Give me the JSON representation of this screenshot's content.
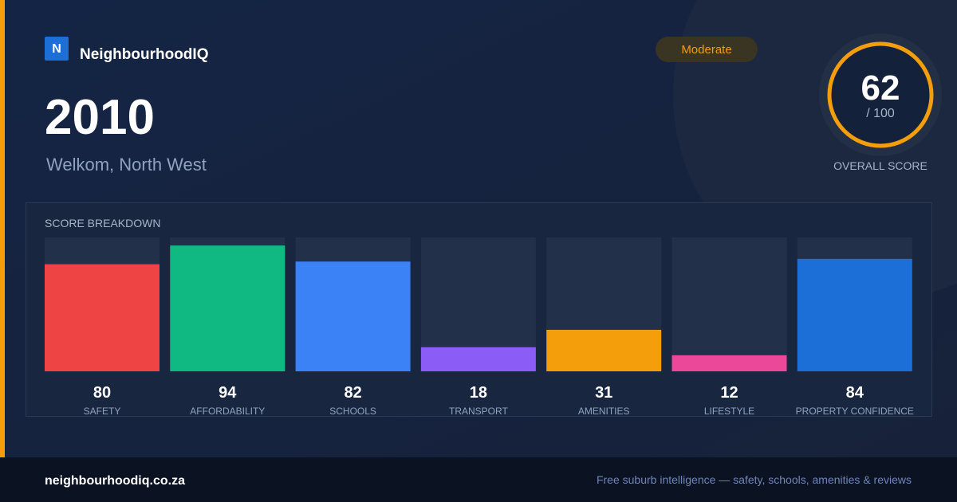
{
  "header": {
    "brand_initial": "N",
    "brand": "NeighbourhoodIQ",
    "title": "2010",
    "subtitle": "Welkom, North West",
    "badge": "Moderate"
  },
  "score": {
    "value": 62,
    "max_label": "/ 100",
    "label": "OVERALL SCORE"
  },
  "chart_data": {
    "type": "bar",
    "title": "SCORE BREAKDOWN",
    "categories": [
      "SAFETY",
      "AFFORDABILITY",
      "SCHOOLS",
      "TRANSPORT",
      "AMENITIES",
      "LIFESTYLE",
      "PROPERTY CONFIDENCE"
    ],
    "values": [
      80,
      94,
      82,
      18,
      31,
      12,
      84
    ],
    "colors": [
      "#ef4444",
      "#10b981",
      "#3b82f6",
      "#8b5cf6",
      "#f59e0b",
      "#ec4899",
      "#1d6fd8"
    ],
    "ylim": [
      0,
      100
    ]
  },
  "footer": {
    "site": "neighbourhoodiq.co.za",
    "tagline": "Free suburb intelligence — safety, schools, amenities & reviews"
  }
}
